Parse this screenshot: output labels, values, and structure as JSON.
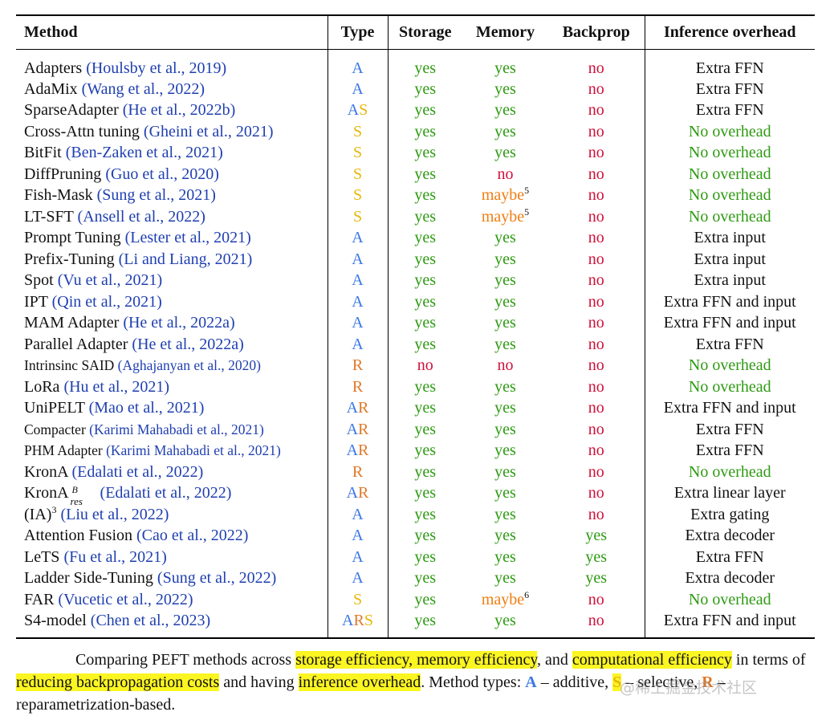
{
  "table": {
    "headers": [
      "Method",
      "Type",
      "Storage",
      "Memory",
      "Backprop",
      "Inference overhead"
    ],
    "rows": [
      {
        "name": "Adapters",
        "cite": "(Houlsby et al., 2019)",
        "type": "A",
        "storage": "yes",
        "memory": "yes",
        "backprop": "no",
        "inference": "Extra FFN"
      },
      {
        "name": "AdaMix",
        "cite": "(Wang et al., 2022)",
        "type": "A",
        "storage": "yes",
        "memory": "yes",
        "backprop": "no",
        "inference": "Extra FFN"
      },
      {
        "name": "SparseAdapter",
        "cite": "(He et al., 2022b)",
        "type": "AS",
        "storage": "yes",
        "memory": "yes",
        "backprop": "no",
        "inference": "Extra FFN"
      },
      {
        "name": "Cross-Attn tuning",
        "cite": "(Gheini et al., 2021)",
        "type": "S",
        "storage": "yes",
        "memory": "yes",
        "backprop": "no",
        "inference": "No overhead"
      },
      {
        "name": "BitFit",
        "cite": "(Ben-Zaken et al., 2021)",
        "type": "S",
        "storage": "yes",
        "memory": "yes",
        "backprop": "no",
        "inference": "No overhead"
      },
      {
        "name": "DiffPruning",
        "cite": "(Guo et al., 2020)",
        "type": "S",
        "storage": "yes",
        "memory": "no",
        "backprop": "no",
        "inference": "No overhead"
      },
      {
        "name": "Fish-Mask",
        "cite": "(Sung et al., 2021)",
        "type": "S",
        "storage": "yes",
        "memory": "maybe",
        "memory_note": "5",
        "backprop": "no",
        "inference": "No overhead"
      },
      {
        "name": "LT-SFT",
        "cite": "(Ansell et al., 2022)",
        "type": "S",
        "storage": "yes",
        "memory": "maybe",
        "memory_note": "5",
        "backprop": "no",
        "inference": "No overhead"
      },
      {
        "name": "Prompt Tuning",
        "cite": "(Lester et al., 2021)",
        "type": "A",
        "storage": "yes",
        "memory": "yes",
        "backprop": "no",
        "inference": "Extra input"
      },
      {
        "name": "Prefix-Tuning",
        "cite": "(Li and Liang, 2021)",
        "type": "A",
        "storage": "yes",
        "memory": "yes",
        "backprop": "no",
        "inference": "Extra input"
      },
      {
        "name": "Spot",
        "cite": "(Vu et al., 2021)",
        "type": "A",
        "storage": "yes",
        "memory": "yes",
        "backprop": "no",
        "inference": "Extra input"
      },
      {
        "name": "IPT",
        "cite": "(Qin et al., 2021)",
        "type": "A",
        "storage": "yes",
        "memory": "yes",
        "backprop": "no",
        "inference": "Extra FFN and input"
      },
      {
        "name": "MAM Adapter",
        "cite": "(He et al., 2022a)",
        "type": "A",
        "storage": "yes",
        "memory": "yes",
        "backprop": "no",
        "inference": "Extra FFN and input"
      },
      {
        "name": "Parallel Adapter",
        "cite": "(He et al., 2022a)",
        "type": "A",
        "storage": "yes",
        "memory": "yes",
        "backprop": "no",
        "inference": "Extra FFN"
      },
      {
        "name": "Intrinsinc SAID",
        "cite": "(Aghajanyan et al., 2020)",
        "type": "R",
        "storage": "no",
        "memory": "no",
        "backprop": "no",
        "inference": "No overhead",
        "small": true
      },
      {
        "name": "LoRa",
        "cite": "(Hu et al., 2021)",
        "type": "R",
        "storage": "yes",
        "memory": "yes",
        "backprop": "no",
        "inference": "No overhead"
      },
      {
        "name": "UniPELT",
        "cite": "(Mao et al., 2021)",
        "type": "AR",
        "storage": "yes",
        "memory": "yes",
        "backprop": "no",
        "inference": "Extra FFN and input"
      },
      {
        "name": "Compacter",
        "cite": "(Karimi Mahabadi et al., 2021)",
        "type": "AR",
        "storage": "yes",
        "memory": "yes",
        "backprop": "no",
        "inference": "Extra FFN",
        "small": true
      },
      {
        "name": "PHM Adapter",
        "cite": "(Karimi Mahabadi et al., 2021)",
        "type": "AR",
        "storage": "yes",
        "memory": "yes",
        "backprop": "no",
        "inference": "Extra FFN",
        "small": true
      },
      {
        "name": "KronA",
        "cite": "(Edalati et al., 2022)",
        "type": "R",
        "storage": "yes",
        "memory": "yes",
        "backprop": "no",
        "inference": "No overhead"
      },
      {
        "name": "KronA",
        "name_sup": "B",
        "name_sub": "res",
        "cite": "(Edalati et al., 2022)",
        "type": "AR",
        "storage": "yes",
        "memory": "yes",
        "backprop": "no",
        "inference": "Extra linear layer"
      },
      {
        "name": "(IA)",
        "name_pow": "3",
        "cite": "(Liu et al., 2022)",
        "type": "A",
        "storage": "yes",
        "memory": "yes",
        "backprop": "no",
        "inference": "Extra gating"
      },
      {
        "name": "Attention Fusion",
        "cite": "(Cao et al., 2022)",
        "type": "A",
        "storage": "yes",
        "memory": "yes",
        "backprop": "yes",
        "inference": "Extra decoder"
      },
      {
        "name": "LeTS",
        "cite": "(Fu et al., 2021)",
        "type": "A",
        "storage": "yes",
        "memory": "yes",
        "backprop": "yes",
        "inference": "Extra FFN"
      },
      {
        "name": "Ladder Side-Tuning",
        "cite": "(Sung et al., 2022)",
        "type": "A",
        "storage": "yes",
        "memory": "yes",
        "backprop": "yes",
        "inference": "Extra decoder"
      },
      {
        "name": "FAR",
        "cite": "(Vucetic et al., 2022)",
        "type": "S",
        "storage": "yes",
        "memory": "maybe",
        "memory_note": "6",
        "backprop": "no",
        "inference": "No overhead"
      },
      {
        "name": "S4-model",
        "cite": "(Chen et al., 2023)",
        "type": "ARS",
        "storage": "yes",
        "memory": "yes",
        "backprop": "no",
        "inference": "Extra FFN and input"
      }
    ]
  },
  "caption": {
    "t1": "Comparing PEFT methods across ",
    "h1": "storage efficiency, memory efficiency",
    "t2": ", and ",
    "h2": "computational efficiency",
    "t3": " in terms of ",
    "h3": "reducing backpropagation costs",
    "t4": " and having ",
    "h4": "inference overhead",
    "t5": ". Method types: ",
    "a_letter": "A",
    "a_text": " – additive, ",
    "s_letter": "S",
    "s_text": " – selective, ",
    "r_letter": "R",
    "r_text": " – reparametrization-based."
  },
  "watermark": "@稀土掘金技术社区",
  "colors": {
    "citation": "#1f3fb0",
    "yes": "#2e9a12",
    "no": "#d0103a",
    "maybe": "#f07d12",
    "type_A": "#3a78e6",
    "type_S": "#e8b70a",
    "type_R": "#e07828",
    "highlight": "#fbf522"
  }
}
